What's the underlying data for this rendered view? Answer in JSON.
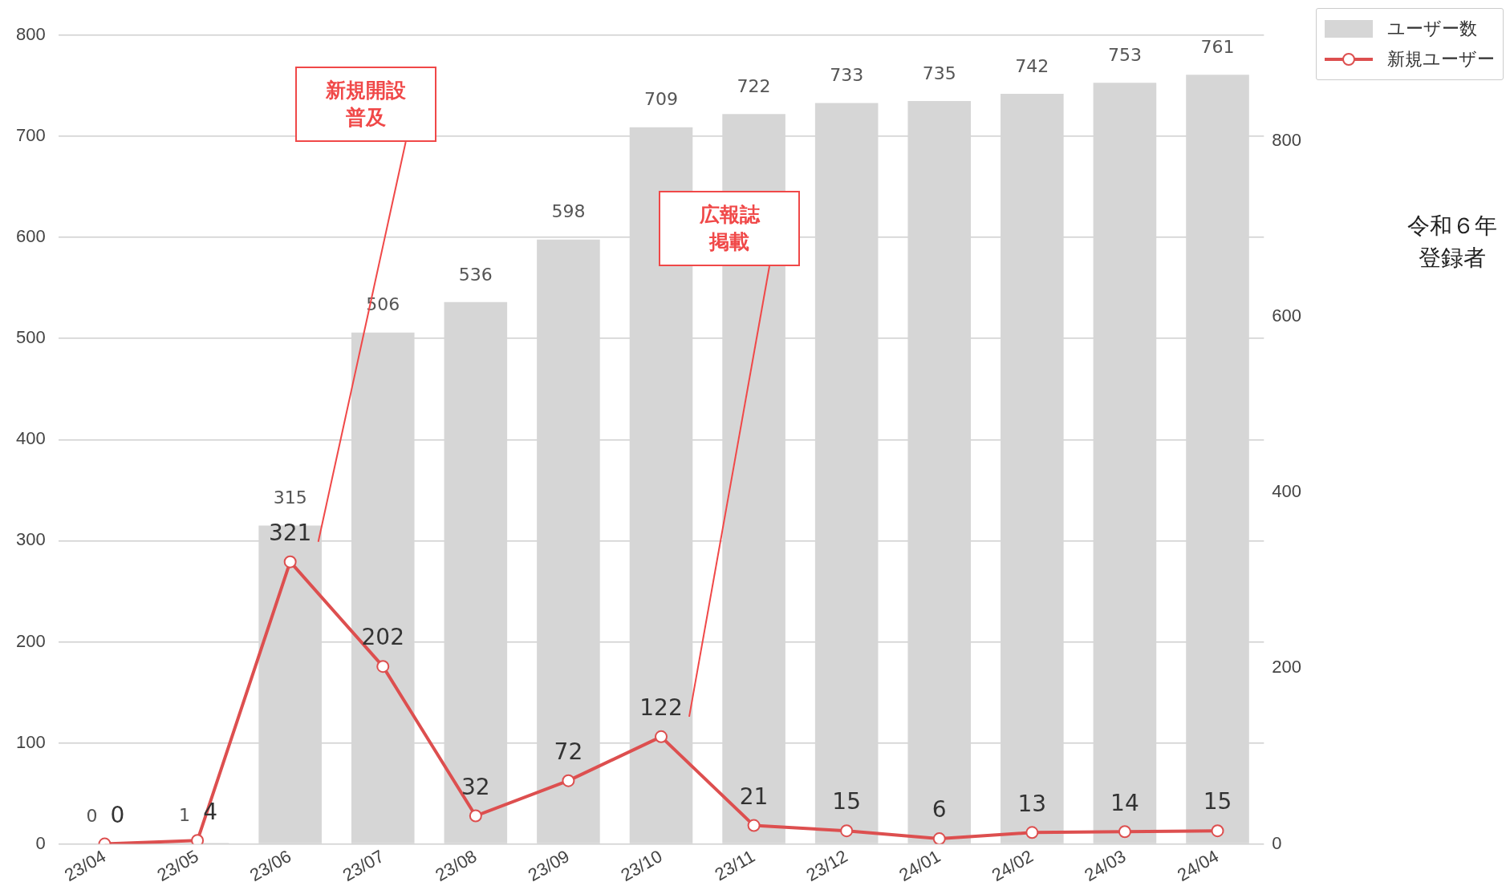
{
  "chart_data": {
    "type": "bar",
    "categories": [
      "23/04",
      "23/05",
      "23/06",
      "23/07",
      "23/08",
      "23/09",
      "23/10",
      "23/11",
      "23/12",
      "24/01",
      "24/02",
      "24/03",
      "24/04"
    ],
    "series": [
      {
        "name": "ユーザー数",
        "color": "#d6d6d6",
        "values": [
          0,
          1,
          315,
          506,
          536,
          598,
          709,
          722,
          733,
          735,
          742,
          753,
          761
        ]
      },
      {
        "name": "新規ユーザー",
        "type": "line",
        "axis": "y2",
        "color": "#dd4f4f",
        "values": [
          0,
          4,
          321,
          202,
          32,
          72,
          122,
          21,
          15,
          6,
          13,
          14,
          15
        ]
      }
    ],
    "ylim": [
      0,
      800
    ],
    "yticks": [
      0,
      100,
      200,
      300,
      400,
      500,
      600,
      700,
      800
    ],
    "y2lim": [
      0,
      920
    ],
    "y2ticks": [
      0,
      200,
      400,
      600,
      800
    ],
    "grid": "y",
    "legend": "top right",
    "marker": "circle",
    "line_style": "solid",
    "data_labels": true,
    "annotations": [
      "新規開設普及",
      "広報誌掲載",
      "令和６年",
      "登録者"
    ]
  }
}
